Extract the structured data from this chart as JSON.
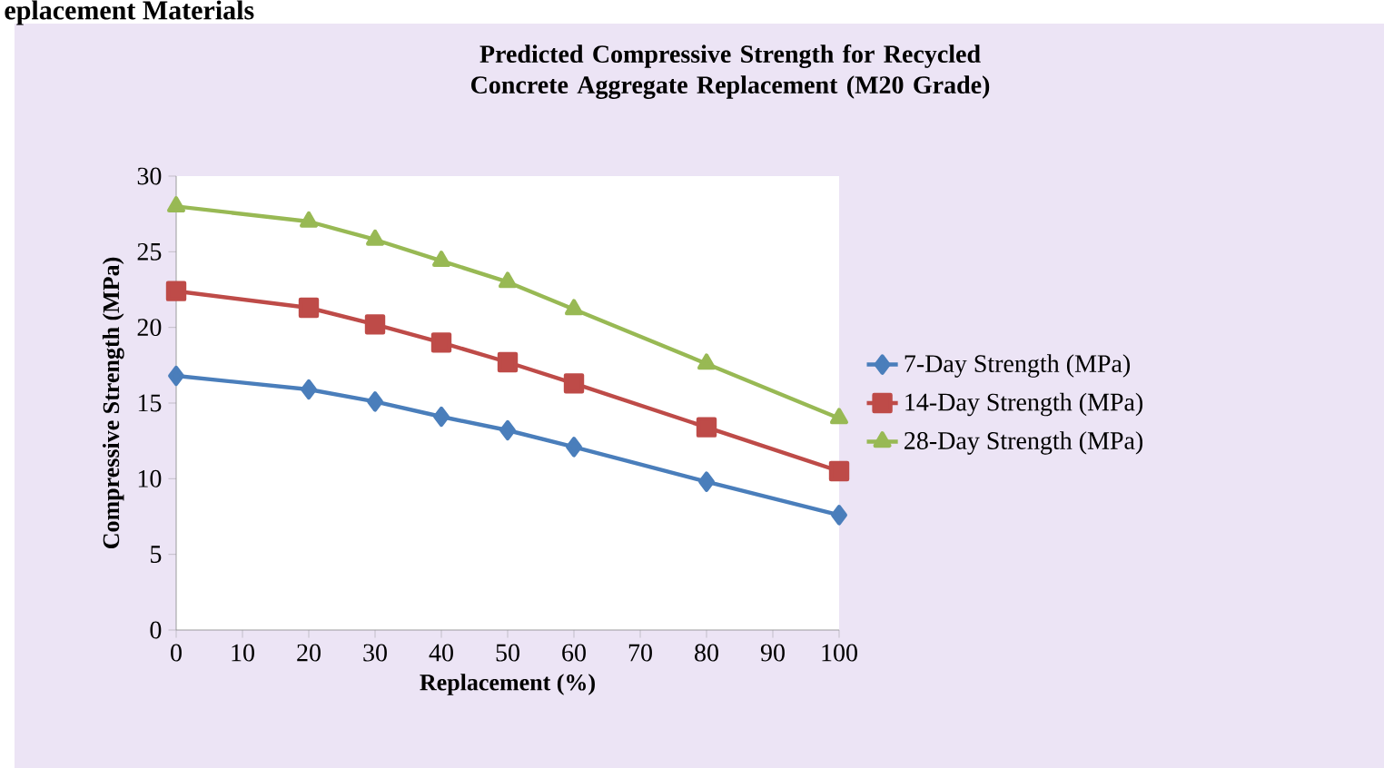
{
  "chart_data": {
    "type": "line",
    "title": "Predicted Compressive Strength for Recycled Concrete Aggregate Replacement (M20 Grade)",
    "xlabel": "Replacement (%)",
    "ylabel": "Compressive Strength (MPa)",
    "annotations": [
      "eplacement Materials"
    ],
    "x": [
      0,
      20,
      30,
      40,
      50,
      60,
      80,
      100
    ],
    "series": [
      {
        "name": "7-Day Strength (MPa)",
        "color": "#4a7ebb",
        "marker": "diamond",
        "values": [
          16.8,
          15.9,
          15.1,
          14.1,
          13.2,
          12.1,
          9.8,
          7.6
        ]
      },
      {
        "name": "14-Day Strength (MPa)",
        "color": "#be4b48",
        "marker": "square",
        "values": [
          22.4,
          21.3,
          20.2,
          19.0,
          17.7,
          16.3,
          13.4,
          10.5
        ]
      },
      {
        "name": "28-Day Strength (MPa)",
        "color": "#98b954",
        "marker": "triangle",
        "values": [
          28.0,
          27.0,
          25.8,
          24.4,
          23.0,
          21.2,
          17.6,
          14.0
        ]
      }
    ],
    "xlim": [
      0,
      100
    ],
    "xticks": [
      0,
      10,
      20,
      30,
      40,
      50,
      60,
      70,
      80,
      90,
      100
    ],
    "ylim": [
      0,
      30
    ],
    "yticks": [
      0,
      5,
      10,
      15,
      20,
      25,
      30
    ],
    "grid": false,
    "legend": "right",
    "line_style": "solid"
  }
}
